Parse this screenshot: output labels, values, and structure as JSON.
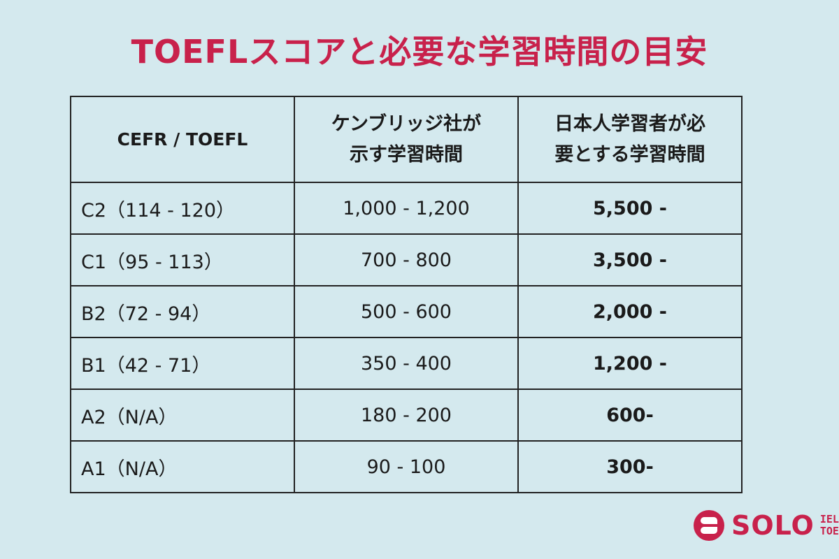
{
  "title": "TOEFLスコアと必要な学習時間の目安",
  "table": {
    "headers": {
      "col1": "CEFR / TOEFL",
      "col2_line1": "ケンブリッジ社が",
      "col2_line2": "示す学習時間",
      "col3_line1": "日本人学習者が必",
      "col3_line2": "要とする学習時間"
    },
    "rows": [
      {
        "level": "C2（114 - 120）",
        "cambridge_hours": "1,000 - 1,200",
        "japanese_hours": "5,500 -"
      },
      {
        "level": "C1（95 - 113）",
        "cambridge_hours": "700 - 800",
        "japanese_hours": "3,500 -"
      },
      {
        "level": "B2（72 - 94）",
        "cambridge_hours": "500 - 600",
        "japanese_hours": "2,000 -"
      },
      {
        "level": "B1（42 - 71）",
        "cambridge_hours": "350 - 400",
        "japanese_hours": "1,200 -"
      },
      {
        "level": "A2（N/A）",
        "cambridge_hours": "180 - 200",
        "japanese_hours": "600-"
      },
      {
        "level": "A1（N/A）",
        "cambridge_hours": "90 - 100",
        "japanese_hours": "300-"
      }
    ]
  },
  "logo": {
    "name": "SOLO",
    "sub_line1": "IELTS",
    "sub_line2": "TOEFL",
    "brand_color": "#c8214b"
  },
  "colors": {
    "background": "#d4e9ee",
    "title": "#c8214b",
    "border": "#222222"
  }
}
